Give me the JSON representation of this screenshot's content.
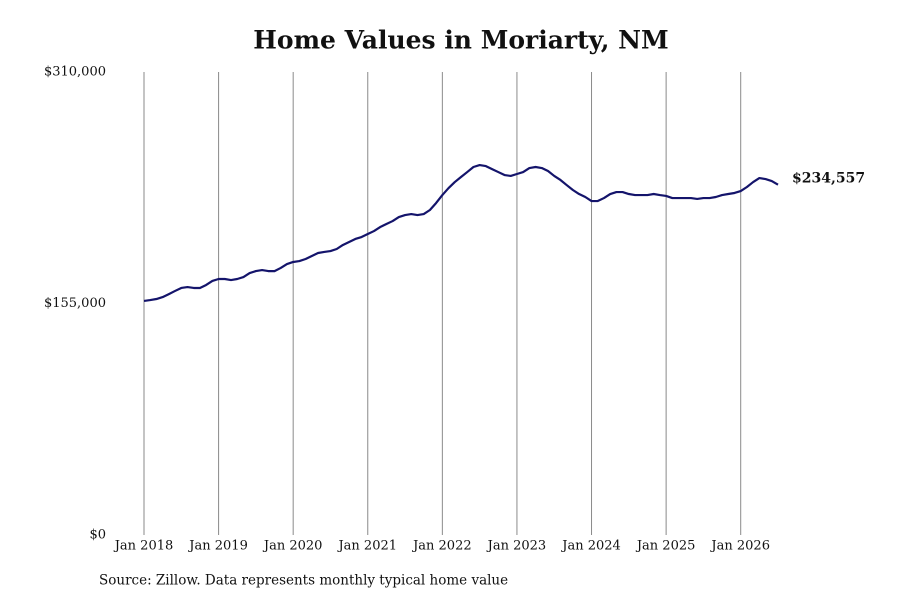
{
  "chart_data": {
    "type": "line",
    "title": "Home Values in Moriarty, NM",
    "source": "Source: Zillow. Data represents monthly typical home value",
    "x": [
      "2018-01",
      "2018-02",
      "2018-03",
      "2018-04",
      "2018-05",
      "2018-06",
      "2018-07",
      "2018-08",
      "2018-09",
      "2018-10",
      "2018-11",
      "2018-12",
      "2019-01",
      "2019-02",
      "2019-03",
      "2019-04",
      "2019-05",
      "2019-06",
      "2019-07",
      "2019-08",
      "2019-09",
      "2019-10",
      "2019-11",
      "2019-12",
      "2020-01",
      "2020-02",
      "2020-03",
      "2020-04",
      "2020-05",
      "2020-06",
      "2020-07",
      "2020-08",
      "2020-09",
      "2020-10",
      "2020-11",
      "2020-12",
      "2021-01",
      "2021-02",
      "2021-03",
      "2021-04",
      "2021-05",
      "2021-06",
      "2021-07",
      "2021-08",
      "2021-09",
      "2021-10",
      "2021-11",
      "2021-12",
      "2022-01",
      "2022-02",
      "2022-03",
      "2022-04",
      "2022-05",
      "2022-06",
      "2022-07",
      "2022-08",
      "2022-09",
      "2022-10",
      "2022-11",
      "2022-12",
      "2023-01",
      "2023-02",
      "2023-03",
      "2023-04",
      "2023-05",
      "2023-06",
      "2023-07",
      "2023-08",
      "2023-09",
      "2023-10",
      "2023-11",
      "2023-12",
      "2024-01",
      "2024-02",
      "2024-03",
      "2024-04",
      "2024-05",
      "2024-06",
      "2024-07",
      "2024-08",
      "2024-09",
      "2024-10",
      "2024-11",
      "2024-12",
      "2025-01",
      "2025-02",
      "2025-03",
      "2025-04",
      "2025-05",
      "2025-06",
      "2025-07",
      "2025-08",
      "2025-09",
      "2025-10",
      "2025-11",
      "2025-12",
      "2026-01",
      "2026-02",
      "2026-03",
      "2026-04",
      "2026-05",
      "2026-06",
      "2026-07"
    ],
    "series": [
      {
        "name": "Typical home value",
        "color": "#14146b",
        "values": [
          156700,
          157300,
          158000,
          159300,
          161300,
          163400,
          165400,
          166000,
          165400,
          165400,
          167400,
          170100,
          171400,
          171400,
          170700,
          171400,
          172700,
          175400,
          176700,
          177400,
          176700,
          176700,
          178800,
          181400,
          182800,
          183400,
          184800,
          186800,
          188800,
          189500,
          190100,
          191500,
          194200,
          196200,
          198200,
          199500,
          201500,
          203500,
          206200,
          208200,
          210200,
          212900,
          214200,
          214900,
          214200,
          214900,
          217600,
          222300,
          227600,
          232300,
          236300,
          239700,
          243000,
          246400,
          247700,
          247000,
          245000,
          243000,
          241000,
          240400,
          241700,
          243000,
          245700,
          246400,
          245700,
          243700,
          240400,
          237700,
          234300,
          231000,
          228300,
          226300,
          223600,
          223600,
          225600,
          228300,
          229600,
          229600,
          228300,
          227600,
          227600,
          227600,
          228300,
          227600,
          227000,
          225600,
          225600,
          225600,
          225600,
          225000,
          225600,
          225600,
          226300,
          227600,
          228300,
          229000,
          230300,
          233000,
          236300,
          239000,
          238300,
          237000,
          234557
        ],
        "end_label": "$234,557"
      }
    ],
    "xlim": [
      "2018-01",
      "2026-07"
    ],
    "xticks": [
      {
        "value": "2018-01",
        "label": "Jan 2018"
      },
      {
        "value": "2019-01",
        "label": "Jan 2019"
      },
      {
        "value": "2020-01",
        "label": "Jan 2020"
      },
      {
        "value": "2021-01",
        "label": "Jan 2021"
      },
      {
        "value": "2022-01",
        "label": "Jan 2022"
      },
      {
        "value": "2023-01",
        "label": "Jan 2023"
      },
      {
        "value": "2024-01",
        "label": "Jan 2024"
      },
      {
        "value": "2025-01",
        "label": "Jan 2025"
      },
      {
        "value": "2026-01",
        "label": "Jan 2026"
      }
    ],
    "ylim": [
      0,
      310000
    ],
    "yticks": [
      {
        "value": 0,
        "label": "$0"
      },
      {
        "value": 155000,
        "label": "$155,000"
      },
      {
        "value": 310000,
        "label": "$310,000"
      }
    ],
    "grid": "x"
  }
}
